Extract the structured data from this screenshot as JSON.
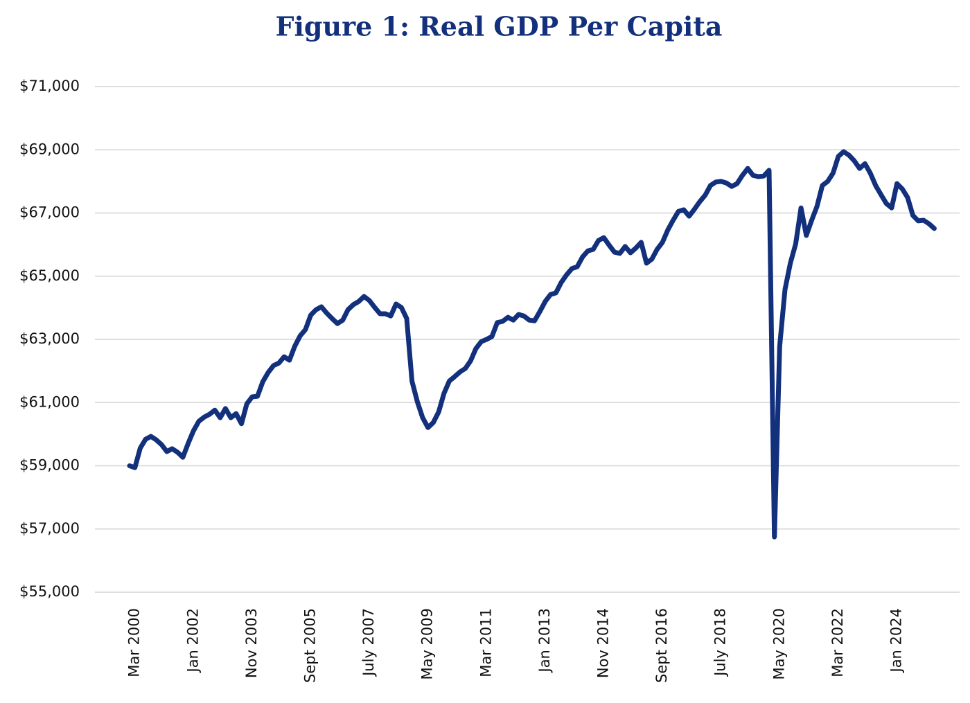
{
  "chart_data": {
    "type": "line",
    "title": "Figure 1: Real GDP Per Capita",
    "color": "#13307d",
    "grid": true,
    "ylim": [
      55000,
      71000
    ],
    "yticks": [
      {
        "value": 55000,
        "label": "$55,000"
      },
      {
        "value": 57000,
        "label": "$57,000"
      },
      {
        "value": 59000,
        "label": "$59,000"
      },
      {
        "value": 61000,
        "label": "$61,000"
      },
      {
        "value": 63000,
        "label": "$63,000"
      },
      {
        "value": 65000,
        "label": "$65,000"
      },
      {
        "value": 67000,
        "label": "$67,000"
      },
      {
        "value": 69000,
        "label": "$69,000"
      },
      {
        "value": 71000,
        "label": "$71,000"
      }
    ],
    "categories": [
      null,
      "Mar 2000",
      null,
      null,
      null,
      null,
      null,
      null,
      null,
      null,
      null,
      null,
      "Jan 2002",
      null,
      null,
      null,
      null,
      null,
      null,
      null,
      null,
      null,
      null,
      "Nov 2003",
      null,
      null,
      null,
      null,
      null,
      null,
      null,
      null,
      null,
      null,
      "Sept 2005",
      null,
      null,
      null,
      null,
      null,
      null,
      null,
      null,
      null,
      null,
      "July 2007",
      null,
      null,
      null,
      null,
      null,
      null,
      null,
      null,
      null,
      null,
      "May 2009",
      null,
      null,
      null,
      null,
      null,
      null,
      null,
      null,
      null,
      null,
      "Mar 2011",
      null,
      null,
      null,
      null,
      null,
      null,
      null,
      null,
      null,
      null,
      "Jan 2013",
      null,
      null,
      null,
      null,
      null,
      null,
      null,
      null,
      null,
      null,
      "Nov 2014",
      null,
      null,
      null,
      null,
      null,
      null,
      null,
      null,
      null,
      null,
      "Sept 2016",
      null,
      null,
      null,
      null,
      null,
      null,
      null,
      null,
      null,
      null,
      "July 2018",
      null,
      null,
      null,
      null,
      null,
      null,
      null,
      null,
      null,
      null,
      "May 2020",
      null,
      null,
      null,
      null,
      null,
      null,
      null,
      null,
      null,
      null,
      "Mar 2022",
      null,
      null,
      null,
      null,
      null,
      null,
      null,
      null,
      null,
      null,
      "Jan 2024",
      null,
      null,
      null,
      null,
      null,
      null,
      null
    ],
    "values": [
      59000,
      58940,
      59560,
      59840,
      59930,
      59820,
      59670,
      59450,
      59540,
      59430,
      59270,
      59710,
      60110,
      60410,
      60540,
      60630,
      60760,
      60520,
      60810,
      60520,
      60650,
      60330,
      60960,
      61180,
      61200,
      61660,
      61950,
      62170,
      62250,
      62450,
      62340,
      62780,
      63110,
      63310,
      63770,
      63940,
      64030,
      63830,
      63660,
      63500,
      63610,
      63940,
      64100,
      64200,
      64360,
      64230,
      64010,
      63810,
      63810,
      63740,
      64120,
      64010,
      63660,
      61680,
      61030,
      60520,
      60210,
      60370,
      60700,
      61290,
      61680,
      61820,
      61970,
      62080,
      62320,
      62710,
      62930,
      63000,
      63090,
      63530,
      63570,
      63700,
      63610,
      63790,
      63740,
      63610,
      63590,
      63880,
      64200,
      64420,
      64470,
      64800,
      65040,
      65240,
      65300,
      65610,
      65800,
      65850,
      66130,
      66220,
      65980,
      65760,
      65720,
      65940,
      65740,
      65890,
      66070,
      65410,
      65540,
      65850,
      66070,
      66460,
      66770,
      67050,
      67100,
      66900,
      67120,
      67360,
      67560,
      67870,
      67980,
      68000,
      67950,
      67840,
      67930,
      68190,
      68410,
      68190,
      68150,
      68170,
      68350,
      56750,
      62780,
      64580,
      65410,
      66020,
      67160,
      66290,
      66770,
      67210,
      67870,
      68000,
      68260,
      68790,
      68940,
      68830,
      68650,
      68410,
      68560,
      68260,
      67870,
      67580,
      67300,
      67160,
      67930,
      67760,
      67490,
      66920,
      66750,
      66770,
      66660,
      66510
    ]
  }
}
